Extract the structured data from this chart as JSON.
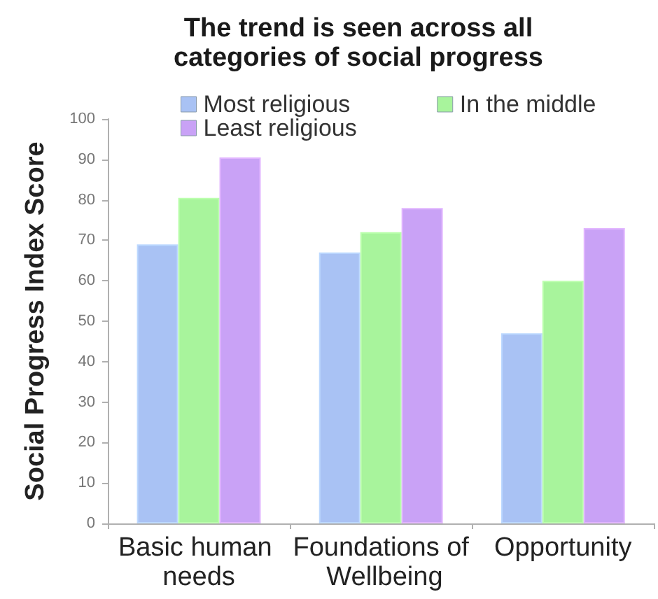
{
  "chart_data": {
    "type": "bar",
    "title": "The trend is seen across all categories of social progress",
    "ylabel": "Social Progress Index Score",
    "categories": [
      "Basic human needs",
      "Foundations of Wellbeing",
      "Opportunity"
    ],
    "series": [
      {
        "name": "Most religious",
        "color": "#a9c2f4",
        "values": [
          69,
          67,
          47
        ]
      },
      {
        "name": "In the middle",
        "color": "#a8f49c",
        "values": [
          80.5,
          72,
          60
        ]
      },
      {
        "name": "Least religious",
        "color": "#c9a2f6",
        "values": [
          90.5,
          78,
          73
        ]
      }
    ],
    "ylim": [
      0,
      100
    ],
    "yticks": [
      0,
      10,
      20,
      30,
      40,
      50,
      60,
      70,
      80,
      90,
      100
    ],
    "grid": false,
    "legend": "top"
  }
}
